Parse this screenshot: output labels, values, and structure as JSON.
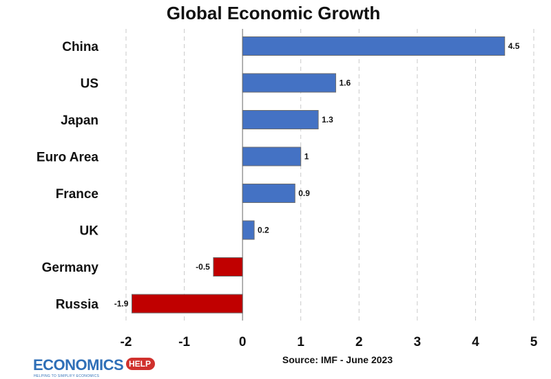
{
  "chart_data": {
    "type": "bar",
    "orientation": "horizontal",
    "title": "Global Economic Growth",
    "categories": [
      "China",
      "US",
      "Japan",
      "Euro Area",
      "France",
      "UK",
      "Germany",
      "Russia"
    ],
    "values": [
      4.5,
      1.6,
      1.3,
      1,
      0.9,
      0.2,
      -0.5,
      -1.9
    ],
    "value_labels": [
      "4.5",
      "1.6",
      "1.3",
      "1",
      "0.9",
      "0.2",
      "-0.5",
      "-1.9"
    ],
    "xlim": [
      -2,
      5
    ],
    "xticks": [
      -2,
      -1,
      0,
      1,
      2,
      3,
      4,
      5
    ],
    "xtick_labels": [
      "-2",
      "-1",
      "0",
      "1",
      "2",
      "3",
      "4",
      "5"
    ],
    "grid": true,
    "xlabel": "",
    "ylabel": "",
    "source": "Source: IMF - June 2023",
    "colors": {
      "positive": "#4472c4",
      "negative": "#c00000"
    }
  },
  "logo": {
    "word": "ECONOMICS",
    "badge": "HELP",
    "tagline": "HELPING TO SIMPLIFY ECONOMICS",
    "word_color": "#2f6fb7",
    "badge_color": "#d0312d",
    "tagline_color": "#2f6fb7"
  }
}
